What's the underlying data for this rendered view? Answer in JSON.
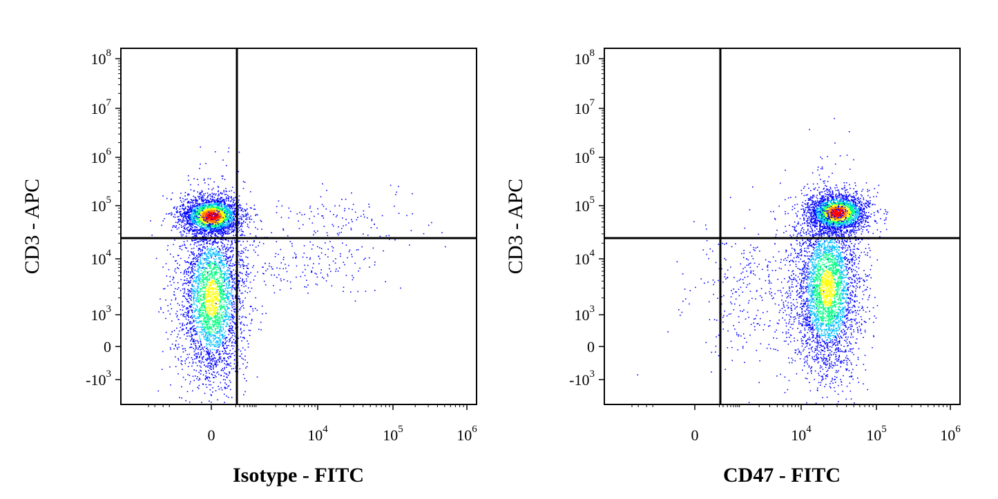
{
  "chart_data": [
    {
      "type": "scatter",
      "subtype": "flow-cytometry-density-dot-plot",
      "xlabel": "Isotype - FITC",
      "ylabel": "CD3 - APC",
      "x_scale": "biexponential",
      "y_scale": "biexponential",
      "x_ticks": [
        {
          "value": 0,
          "base": "0",
          "exp": ""
        },
        {
          "value": 10000,
          "base": "10",
          "exp": "4"
        },
        {
          "value": 100000,
          "base": "10",
          "exp": "5"
        },
        {
          "value": 1000000,
          "base": "10",
          "exp": "6"
        }
      ],
      "y_ticks": [
        {
          "value": -1000,
          "base": "-10",
          "exp": "3"
        },
        {
          "value": 0,
          "base": "0",
          "exp": ""
        },
        {
          "value": 1000,
          "base": "10",
          "exp": "3"
        },
        {
          "value": 10000,
          "base": "10",
          "exp": "4"
        },
        {
          "value": 100000,
          "base": "10",
          "exp": "5"
        },
        {
          "value": 1000000,
          "base": "10",
          "exp": "6"
        },
        {
          "value": 10000000,
          "base": "10",
          "exp": "7"
        },
        {
          "value": 100000000,
          "base": "10",
          "exp": "8"
        }
      ],
      "quadrant_gate": {
        "x": 250,
        "y": 25000
      },
      "populations": [
        {
          "name": "",
          "x_center": 0,
          "y_center": 65000,
          "count": 2400,
          "peak": true
        },
        {
          "name": "",
          "x_center": 0,
          "y_center": 2000,
          "count": 3200,
          "peak": false
        },
        {
          "name": "",
          "x_center": 20000,
          "y_center": 55000,
          "count": 130,
          "peak": false
        },
        {
          "name": "",
          "x_center": 3000,
          "y_center": 8000,
          "count": 220,
          "peak": false
        }
      ],
      "grid": false,
      "legend": "none"
    },
    {
      "type": "scatter",
      "subtype": "flow-cytometry-density-dot-plot",
      "xlabel": "CD47 - FITC",
      "ylabel": "CD3 - APC",
      "x_scale": "biexponential",
      "y_scale": "biexponential",
      "x_ticks": [
        {
          "value": 0,
          "base": "0",
          "exp": ""
        },
        {
          "value": 10000,
          "base": "10",
          "exp": "4"
        },
        {
          "value": 100000,
          "base": "10",
          "exp": "5"
        },
        {
          "value": 1000000,
          "base": "10",
          "exp": "6"
        }
      ],
      "y_ticks": [
        {
          "value": -1000,
          "base": "-10",
          "exp": "3"
        },
        {
          "value": 0,
          "base": "0",
          "exp": ""
        },
        {
          "value": 1000,
          "base": "10",
          "exp": "3"
        },
        {
          "value": 10000,
          "base": "10",
          "exp": "4"
        },
        {
          "value": 100000,
          "base": "10",
          "exp": "5"
        },
        {
          "value": 1000000,
          "base": "10",
          "exp": "6"
        },
        {
          "value": 10000000,
          "base": "10",
          "exp": "7"
        },
        {
          "value": 100000000,
          "base": "10",
          "exp": "8"
        }
      ],
      "quadrant_gate": {
        "x": 250,
        "y": 25000
      },
      "populations": [
        {
          "name": "",
          "x_center": 30000,
          "y_center": 75000,
          "count": 2300,
          "peak": true
        },
        {
          "name": "",
          "x_center": 22000,
          "y_center": 3000,
          "count": 3600,
          "peak": false
        },
        {
          "name": "",
          "x_center": 1500,
          "y_center": 3000,
          "count": 350,
          "peak": false
        }
      ],
      "grid": false,
      "legend": "none"
    }
  ],
  "colors": {
    "density_low": "#0000ff",
    "density_mid_low": "#00c0ff",
    "density_mid": "#00ff80",
    "density_mid_high": "#ffff00",
    "density_high": "#ff8000",
    "density_peak": "#ff0000",
    "gate_line": "#000000",
    "background": "#ffffff"
  }
}
